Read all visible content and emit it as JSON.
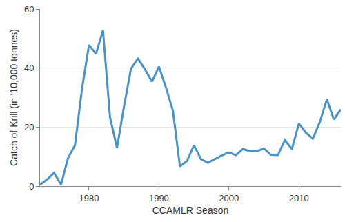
{
  "chart_data": {
    "type": "line",
    "x_label": "CCAMLR Season",
    "y_label": "Catch of Krill (in '10,000 tonnes)",
    "x": [
      1973,
      1974,
      1975,
      1976,
      1977,
      1978,
      1979,
      1980,
      1981,
      1982,
      1983,
      1984,
      1985,
      1986,
      1987,
      1988,
      1989,
      1990,
      1991,
      1992,
      1993,
      1994,
      1995,
      1996,
      1997,
      1998,
      1999,
      2000,
      2001,
      2002,
      2003,
      2004,
      2005,
      2006,
      2007,
      2008,
      2009,
      2010,
      2011,
      2012,
      2013,
      2014,
      2015,
      2016
    ],
    "values": [
      0.5,
      2.2,
      4.5,
      0.5,
      9.5,
      13.9,
      33,
      47.8,
      44.8,
      52.8,
      23.4,
      12.9,
      26.9,
      39.8,
      43.2,
      39.5,
      35.4,
      40.5,
      33.4,
      25.5,
      6.7,
      8.5,
      13.8,
      9.2,
      7.9,
      9.2,
      10.4,
      11.4,
      10.5,
      12.6,
      11.8,
      11.8,
      12.8,
      10.6,
      10.5,
      15.6,
      12.5,
      21.2,
      18.1,
      16.1,
      21.7,
      29.4,
      22.6,
      26.0
    ],
    "color": "#4a93c8",
    "xlim": [
      1973,
      2016
    ],
    "xticks": [
      1980,
      1990,
      2000,
      2010
    ],
    "ylim": [
      0,
      60
    ],
    "yticks": [
      0,
      20,
      40,
      60
    ],
    "grid": true
  }
}
